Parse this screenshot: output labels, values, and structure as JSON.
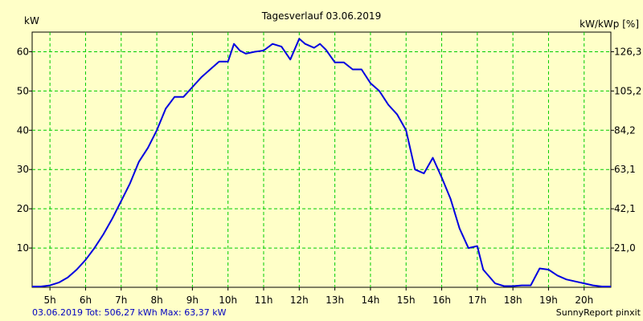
{
  "chart_data": {
    "type": "line",
    "title": "Tagesverlauf 03.06.2019",
    "ylabel_left": "kW",
    "ylabel_right": "kW/kWp [%]",
    "grid": true,
    "xlim": [
      4.5,
      20.75
    ],
    "ylim": [
      0,
      65
    ],
    "x_ticks": [
      {
        "value": 5,
        "label": "5h"
      },
      {
        "value": 6,
        "label": "6h"
      },
      {
        "value": 7,
        "label": "7h"
      },
      {
        "value": 8,
        "label": "8h"
      },
      {
        "value": 9,
        "label": "9h"
      },
      {
        "value": 10,
        "label": "10h"
      },
      {
        "value": 11,
        "label": "11h"
      },
      {
        "value": 12,
        "label": "12h"
      },
      {
        "value": 13,
        "label": "13h"
      },
      {
        "value": 14,
        "label": "14h"
      },
      {
        "value": 15,
        "label": "15h"
      },
      {
        "value": 16,
        "label": "16h"
      },
      {
        "value": 17,
        "label": "17h"
      },
      {
        "value": 18,
        "label": "18h"
      },
      {
        "value": 19,
        "label": "19h"
      },
      {
        "value": 20,
        "label": "20h"
      }
    ],
    "y_ticks_left": [
      {
        "value": 10,
        "label": "10"
      },
      {
        "value": 20,
        "label": "20"
      },
      {
        "value": 30,
        "label": "30"
      },
      {
        "value": 40,
        "label": "40"
      },
      {
        "value": 50,
        "label": "50"
      },
      {
        "value": 60,
        "label": "60"
      }
    ],
    "y_ticks_right": [
      {
        "value": 10,
        "label": "21,0"
      },
      {
        "value": 20,
        "label": "42,1"
      },
      {
        "value": 30,
        "label": "63,1"
      },
      {
        "value": 40,
        "label": "84,2"
      },
      {
        "value": 50,
        "label": "105,2"
      },
      {
        "value": 60,
        "label": "126,3"
      }
    ],
    "series": [
      {
        "color": "#0000E0",
        "x": [
          4.5,
          4.75,
          5.0,
          5.25,
          5.5,
          5.75,
          6.0,
          6.25,
          6.5,
          6.75,
          7.0,
          7.25,
          7.5,
          7.75,
          8.0,
          8.25,
          8.5,
          8.75,
          9.0,
          9.25,
          9.5,
          9.75,
          10.0,
          10.167,
          10.333,
          10.5,
          10.75,
          11.0,
          11.25,
          11.5,
          11.75,
          12.0,
          12.167,
          12.417,
          12.583,
          12.75,
          13.0,
          13.25,
          13.5,
          13.75,
          14.0,
          14.25,
          14.5,
          14.75,
          15.0,
          15.25,
          15.5,
          15.75,
          16.0,
          16.25,
          16.5,
          16.75,
          17.0,
          17.167,
          17.5,
          17.75,
          18.0,
          18.25,
          18.5,
          18.75,
          19.0,
          19.25,
          19.5,
          19.75,
          20.0,
          20.25,
          20.5,
          20.75
        ],
        "values": [
          0.2,
          0.2,
          0.5,
          1.2,
          2.5,
          4.5,
          7.0,
          10.0,
          13.5,
          17.5,
          22.0,
          26.5,
          32.0,
          35.5,
          40.0,
          45.5,
          48.5,
          48.5,
          51.0,
          53.5,
          55.5,
          57.5,
          57.5,
          62.0,
          60.3,
          59.5,
          60.0,
          60.3,
          62.0,
          61.3,
          58.0,
          63.3,
          62.0,
          61.0,
          62.0,
          60.5,
          57.3,
          57.3,
          55.5,
          55.5,
          52.0,
          50.0,
          46.5,
          44.0,
          40.0,
          30.0,
          29.0,
          33.0,
          28.0,
          22.5,
          15.0,
          10.0,
          10.5,
          4.5,
          1.0,
          0.3,
          0.3,
          0.5,
          0.5,
          4.8,
          4.5,
          3.0,
          2.0,
          1.5,
          1.0,
          0.5,
          0.2,
          0.2
        ]
      }
    ]
  },
  "footer": {
    "left": "03.06.2019 Tot: 506,27 kWh Max: 63,37 kW",
    "right": "SunnyReport pinxit"
  }
}
